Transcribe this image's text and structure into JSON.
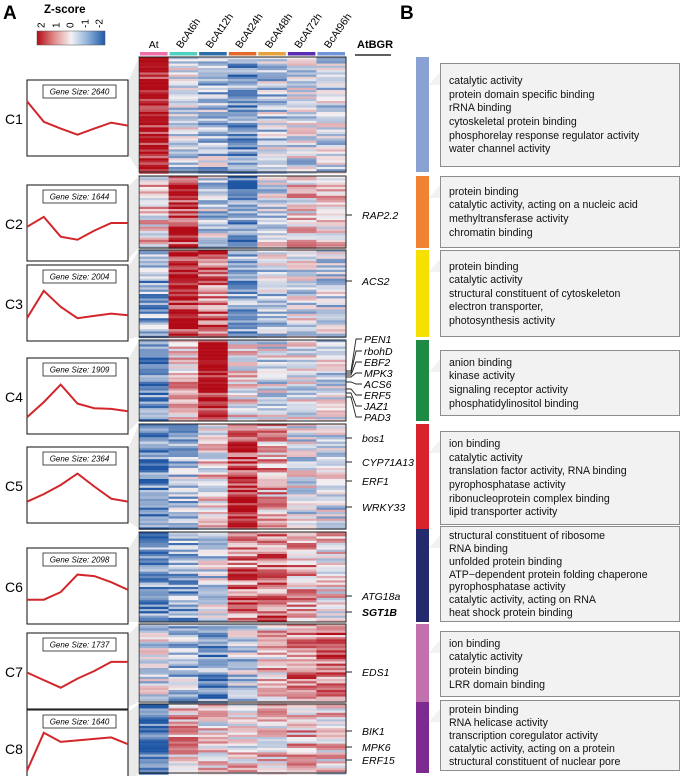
{
  "panel_labels": {
    "a": "A",
    "b": "B"
  },
  "zscore_legend": {
    "title": "Z-score",
    "ticks": [
      "2",
      "1",
      "0",
      "-1",
      "-2"
    ],
    "colors": [
      "#b40c16",
      "#f4f2f4",
      "#1f5aa6"
    ]
  },
  "heatmap": {
    "columns": [
      "At",
      "BcAt6h",
      "BcAt12h",
      "BcAt24h",
      "BcAt48h",
      "BcAt72h",
      "BcAt96h"
    ],
    "column_colors": [
      "#ef6fa8",
      "#4fd0c2",
      "#2d6ea8",
      "#e16a2c",
      "#e7a23d",
      "#5a2cb2",
      "#6f95d8"
    ],
    "side_header": "AtBGR"
  },
  "clusters": [
    {
      "name": "C1",
      "gene_size_label": "Gene Size: 2640",
      "profile": [
        0.72,
        0.45,
        0.36,
        0.28,
        0.36,
        0.44,
        0.4
      ],
      "pattern": [
        2.0,
        -0.4,
        -0.6,
        -1.2,
        -0.5,
        -0.3,
        -0.4
      ],
      "genes": []
    },
    {
      "name": "C2",
      "gene_size_label": "Gene Size: 1644",
      "profile": [
        0.45,
        0.58,
        0.32,
        0.28,
        0.4,
        0.5,
        0.5
      ],
      "pattern": [
        0.3,
        1.6,
        -0.5,
        -1.3,
        -0.3,
        0.3,
        0.2
      ],
      "genes": [
        "RAP2.2"
      ]
    },
    {
      "name": "C3",
      "gene_size_label": "Gene Size: 2004",
      "profile": [
        0.3,
        0.66,
        0.45,
        0.3,
        0.33,
        0.36,
        0.34
      ],
      "pattern": [
        -0.9,
        1.8,
        1.1,
        -0.9,
        -0.4,
        -0.2,
        -0.3
      ],
      "genes": [
        "ACS2"
      ]
    },
    {
      "name": "C4",
      "gene_size_label": "Gene Size: 1909",
      "profile": [
        0.22,
        0.42,
        0.65,
        0.4,
        0.34,
        0.33,
        0.3
      ],
      "pattern": [
        -1.4,
        0.5,
        1.8,
        0.2,
        -0.2,
        -0.2,
        -0.3
      ],
      "genes": [
        "PEN1",
        "rbohD",
        "EBF2",
        "MPK3",
        "ACS6",
        "ERF5",
        "JAZ1",
        "PAD3"
      ]
    },
    {
      "name": "C5",
      "gene_size_label": "Gene Size: 2364",
      "profile": [
        0.28,
        0.38,
        0.5,
        0.65,
        0.48,
        0.32,
        0.28
      ],
      "pattern": [
        -1.3,
        -0.6,
        0.2,
        1.6,
        0.6,
        -0.2,
        -0.3
      ],
      "genes": [
        "bos1",
        "CYP71A13",
        "ERF1",
        "WRKY33"
      ]
    },
    {
      "name": "C6",
      "gene_size_label": "Gene Size: 2098",
      "profile": [
        0.32,
        0.32,
        0.42,
        0.65,
        0.63,
        0.55,
        0.45
      ],
      "pattern": [
        -1.2,
        -0.9,
        -0.4,
        1.0,
        1.1,
        0.6,
        0.2
      ],
      "genes": [
        "ATG18a",
        "SGT1B"
      ]
    },
    {
      "name": "C7",
      "gene_size_label": "Gene Size: 1737",
      "profile": [
        0.48,
        0.38,
        0.28,
        0.4,
        0.5,
        0.62,
        0.62
      ],
      "pattern": [
        -0.2,
        -0.7,
        -1.2,
        -0.5,
        0.4,
        1.1,
        1.0
      ],
      "genes": [
        "EDS1"
      ]
    },
    {
      "name": "C8",
      "gene_size_label": "Gene Size: 1640",
      "profile": [
        0.2,
        0.7,
        0.58,
        0.6,
        0.62,
        0.64,
        0.55
      ],
      "pattern": [
        -1.8,
        0.5,
        0.2,
        0.3,
        0.4,
        0.5,
        0.2
      ],
      "genes": [
        "BIK1",
        "MPK6",
        "ERF15"
      ]
    }
  ],
  "go_terms": [
    {
      "cluster": "C1",
      "color": "#8aa1d3",
      "terms": [
        "catalytic activity",
        "protein domain specific binding",
        "rRNA binding",
        "cytoskeletal protein binding",
        "phosphorelay response regulator activity",
        "water channel activity"
      ]
    },
    {
      "cluster": "C2",
      "color": "#f08232",
      "terms": [
        "protein binding",
        "catalytic activity, acting on a nucleic acid",
        "methyltransferase activity",
        "chromatin binding"
      ]
    },
    {
      "cluster": "C3",
      "color": "#f6e000",
      "terms": [
        "protein binding",
        "catalytic activity",
        "structural constituent of cytoskeleton",
        "electron transporter,",
        "photosynthesis  activity"
      ]
    },
    {
      "cluster": "C4",
      "color": "#1f8a44",
      "terms": [
        "anion binding",
        "kinase activity",
        "signaling receptor activity",
        "phosphatidylinositol binding"
      ]
    },
    {
      "cluster": "C5",
      "color": "#d8232c",
      "terms": [
        "ion binding",
        "catalytic activity",
        "translation factor activity, RNA binding",
        "pyrophosphatase activity",
        "ribonucleoprotein complex binding",
        "lipid transporter activity"
      ]
    },
    {
      "cluster": "C6",
      "color": "#242a6b",
      "terms": [
        "structural constituent of ribosome",
        "RNA binding",
        "unfolded protein binding",
        "ATP−dependent protein folding chaperone",
        "pyrophosphatase activity",
        "catalytic activity, acting on RNA",
        "heat shock protein binding"
      ]
    },
    {
      "cluster": "C7",
      "color": "#c071ae",
      "terms": [
        "ion binding",
        "catalytic activity",
        "protein binding",
        "LRR domain binding"
      ]
    },
    {
      "cluster": "C8",
      "color": "#7d2a90",
      "terms": [
        "protein binding",
        "RNA helicase activity",
        "transcription coregulator activity",
        "catalytic activity, acting on a protein",
        "structural constituent of nuclear pore"
      ]
    }
  ]
}
